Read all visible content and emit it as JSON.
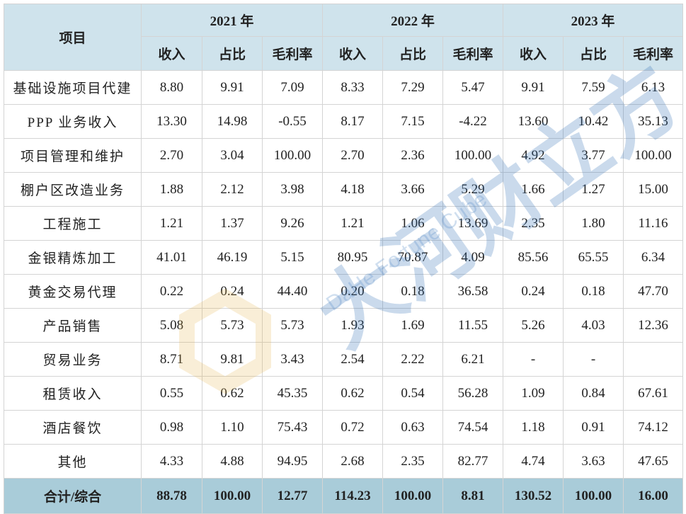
{
  "table": {
    "item_header": "项目",
    "years": [
      "2021 年",
      "2022 年",
      "2023 年"
    ],
    "sub_headers": [
      "收入",
      "占比",
      "毛利率"
    ],
    "rows": [
      {
        "label": "基础设施项目代建",
        "values": [
          "8.80",
          "9.91",
          "7.09",
          "8.33",
          "7.29",
          "5.47",
          "9.91",
          "7.59",
          "6.13"
        ]
      },
      {
        "label": "PPP 业务收入",
        "values": [
          "13.30",
          "14.98",
          "-0.55",
          "8.17",
          "7.15",
          "-4.22",
          "13.60",
          "10.42",
          "35.13"
        ]
      },
      {
        "label": "项目管理和维护",
        "values": [
          "2.70",
          "3.04",
          "100.00",
          "2.70",
          "2.36",
          "100.00",
          "4.92",
          "3.77",
          "100.00"
        ]
      },
      {
        "label": "棚户区改造业务",
        "values": [
          "1.88",
          "2.12",
          "3.98",
          "4.18",
          "3.66",
          "5.29",
          "1.66",
          "1.27",
          "15.00"
        ]
      },
      {
        "label": "工程施工",
        "values": [
          "1.21",
          "1.37",
          "9.26",
          "1.21",
          "1.06",
          "13.69",
          "2.35",
          "1.80",
          "11.16"
        ]
      },
      {
        "label": "金银精炼加工",
        "values": [
          "41.01",
          "46.19",
          "5.15",
          "80.95",
          "70.87",
          "4.09",
          "85.56",
          "65.55",
          "6.34"
        ]
      },
      {
        "label": "黄金交易代理",
        "values": [
          "0.22",
          "0.24",
          "44.40",
          "0.20",
          "0.18",
          "36.58",
          "0.24",
          "0.18",
          "47.70"
        ]
      },
      {
        "label": "产品销售",
        "values": [
          "5.08",
          "5.73",
          "5.73",
          "1.93",
          "1.69",
          "11.55",
          "5.26",
          "4.03",
          "12.36"
        ]
      },
      {
        "label": "贸易业务",
        "values": [
          "8.71",
          "9.81",
          "3.43",
          "2.54",
          "2.22",
          "6.21",
          "-",
          "-",
          ""
        ]
      },
      {
        "label": "租赁收入",
        "values": [
          "0.55",
          "0.62",
          "45.35",
          "0.62",
          "0.54",
          "56.28",
          "1.09",
          "0.84",
          "67.61"
        ]
      },
      {
        "label": "酒店餐饮",
        "values": [
          "0.98",
          "1.10",
          "75.43",
          "0.72",
          "0.63",
          "74.54",
          "1.18",
          "0.91",
          "74.12"
        ]
      },
      {
        "label": "其他",
        "values": [
          "4.33",
          "4.88",
          "94.95",
          "2.68",
          "2.35",
          "82.77",
          "4.74",
          "3.63",
          "47.65"
        ]
      }
    ],
    "total": {
      "label": "合计/综合",
      "values": [
        "88.78",
        "100.00",
        "12.77",
        "114.23",
        "100.00",
        "8.81",
        "130.52",
        "100.00",
        "16.00"
      ]
    }
  },
  "watermark": {
    "cn": "大河财立方",
    "en": "DaHe Fortune Cube"
  }
}
